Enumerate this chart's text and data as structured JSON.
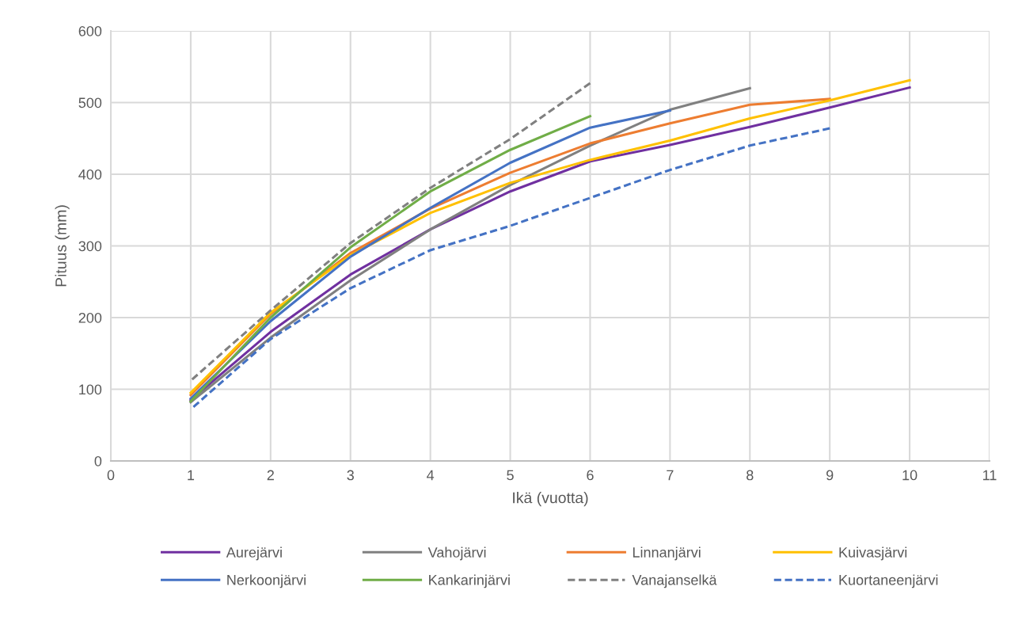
{
  "chart_data": {
    "type": "line",
    "xlabel": "Ikä (vuotta)",
    "ylabel": "Pituus (mm)",
    "x": [
      1,
      2,
      3,
      4,
      5,
      6,
      7,
      8,
      9,
      10
    ],
    "xlim": [
      0,
      11
    ],
    "xticks": [
      0,
      1,
      2,
      3,
      4,
      5,
      6,
      7,
      8,
      9,
      10,
      11
    ],
    "ylim": [
      0,
      600
    ],
    "yticks": [
      0,
      100,
      200,
      300,
      400,
      500,
      600
    ],
    "grid": true,
    "legend": "bottom",
    "marker": "none",
    "series": [
      {
        "name": "Aurejärvi",
        "color": "#7030a0",
        "line_style": "solid",
        "values": [
          85,
          180,
          260,
          323,
          376,
          418,
          441,
          466,
          493,
          521
        ]
      },
      {
        "name": "Vahojärvi",
        "color": "#808080",
        "line_style": "solid",
        "values": [
          82,
          172,
          252,
          323,
          385,
          440,
          490,
          520,
          null,
          null
        ]
      },
      {
        "name": "Linnanjärvi",
        "color": "#ed7d31",
        "line_style": "solid",
        "values": [
          92,
          205,
          290,
          352,
          402,
          443,
          471,
          497,
          505,
          null
        ]
      },
      {
        "name": "Kuivasjärvi",
        "color": "#ffc000",
        "line_style": "solid",
        "values": [
          95,
          207,
          287,
          346,
          388,
          420,
          447,
          478,
          503,
          531
        ]
      },
      {
        "name": "Nerkoonjärvi",
        "color": "#4472c4",
        "line_style": "solid",
        "values": [
          87,
          195,
          285,
          353,
          416,
          465,
          489,
          null,
          null,
          null
        ]
      },
      {
        "name": "Kankarinjärvi",
        "color": "#70ad47",
        "line_style": "solid",
        "values": [
          83,
          200,
          298,
          376,
          434,
          481,
          null,
          null,
          null,
          null
        ]
      },
      {
        "name": "Vanajanselkä",
        "color": "#808080",
        "line_style": "dashed",
        "values": [
          112,
          210,
          304,
          381,
          449,
          527,
          null,
          null,
          null,
          null
        ]
      },
      {
        "name": "Kuortaneenjärvi",
        "color": "#4472c4",
        "line_style": "dashed",
        "values": [
          72,
          170,
          241,
          294,
          328,
          367,
          406,
          440,
          464,
          null
        ]
      }
    ]
  }
}
